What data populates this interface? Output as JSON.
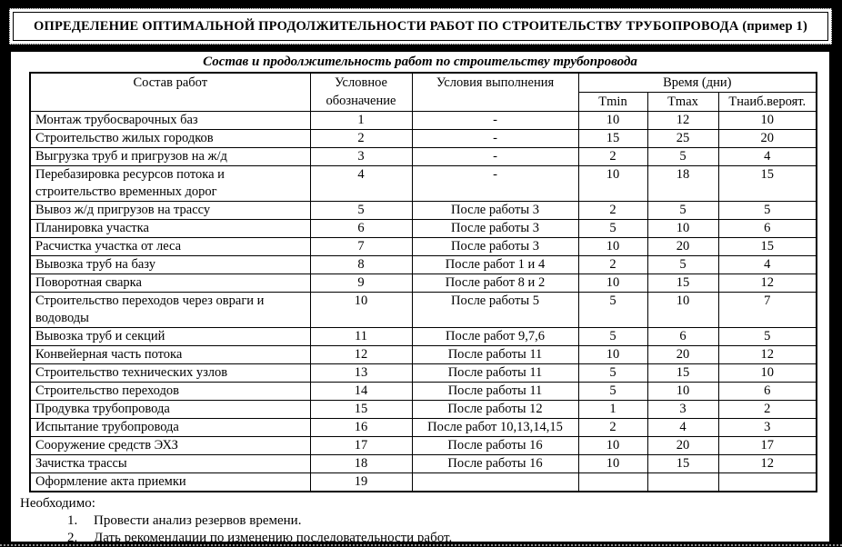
{
  "colors": {
    "page_background": "#000000",
    "content_background": "#ffffff",
    "text": "#000000",
    "border": "#000000"
  },
  "title_box": {
    "text": "ОПРЕДЕЛЕНИЕ ОПТИМАЛЬНОЙ ПРОДОЛЖИТЕЛЬНОСТИ РАБОТ ПО СТРОИТЕЛЬСТВУ ТРУБОПРОВОДА (пример 1)"
  },
  "table": {
    "caption": "Состав и продолжительность работ по строительству трубопровода",
    "headers": {
      "col_work": "Состав работ",
      "col_symbol": "Условное обозначение",
      "col_conditions": "Условия выполнения",
      "col_time_group": "Время (дни)",
      "col_tmin": "Tmin",
      "col_tmax": "Tmax",
      "col_tprob": "Тнаиб.вероят."
    },
    "rows": [
      {
        "work": "Монтаж трубосварочных баз",
        "symbol": "1",
        "conditions": "-",
        "tmin": "10",
        "tmax": "12",
        "tprob": "10"
      },
      {
        "work": "Строительство жилых городков",
        "symbol": "2",
        "conditions": "-",
        "tmin": "15",
        "tmax": "25",
        "tprob": "20"
      },
      {
        "work": "Выгрузка труб и пригрузов на ж/д",
        "symbol": "3",
        "conditions": "-",
        "tmin": "2",
        "tmax": "5",
        "tprob": "4"
      },
      {
        "work": "Перебазировка ресурсов потока и строительство временных дорог",
        "symbol": "4",
        "conditions": "-",
        "tmin": "10",
        "tmax": "18",
        "tprob": "15"
      },
      {
        "work": "Вывоз ж/д пригрузов на трассу",
        "symbol": "5",
        "conditions": "После работы 3",
        "tmin": "2",
        "tmax": "5",
        "tprob": "5"
      },
      {
        "work": "Планировка участка",
        "symbol": "6",
        "conditions": "После работы 3",
        "tmin": "5",
        "tmax": "10",
        "tprob": "6"
      },
      {
        "work": "Расчистка участка от леса",
        "symbol": "7",
        "conditions": "После работы 3",
        "tmin": "10",
        "tmax": "20",
        "tprob": "15"
      },
      {
        "work": "Вывозка труб на базу",
        "symbol": "8",
        "conditions": "После работ 1 и 4",
        "tmin": "2",
        "tmax": "5",
        "tprob": "4"
      },
      {
        "work": "Поворотная сварка",
        "symbol": "9",
        "conditions": "После работ 8 и 2",
        "tmin": "10",
        "tmax": "15",
        "tprob": "12"
      },
      {
        "work": "Строительство переходов через овраги и водоводы",
        "symbol": "10",
        "conditions": "После работы 5",
        "tmin": "5",
        "tmax": "10",
        "tprob": "7"
      },
      {
        "work": "Вывозка труб и секций",
        "symbol": "11",
        "conditions": "После работ 9,7,6",
        "tmin": "5",
        "tmax": "6",
        "tprob": "5"
      },
      {
        "work": "Конвейерная часть потока",
        "symbol": "12",
        "conditions": "После работы 11",
        "tmin": "10",
        "tmax": "20",
        "tprob": "12"
      },
      {
        "work": "Строительство технических узлов",
        "symbol": "13",
        "conditions": "После работы 11",
        "tmin": "5",
        "tmax": "15",
        "tprob": "10"
      },
      {
        "work": "Строительство переходов",
        "symbol": "14",
        "conditions": "После работы 11",
        "tmin": "5",
        "tmax": "10",
        "tprob": "6"
      },
      {
        "work": "Продувка трубопровода",
        "symbol": "15",
        "conditions": "После работы 12",
        "tmin": "1",
        "tmax": "3",
        "tprob": "2"
      },
      {
        "work": "Испытание трубопровода",
        "symbol": "16",
        "conditions": "После работ 10,13,14,15",
        "tmin": "2",
        "tmax": "4",
        "tprob": "3"
      },
      {
        "work": "Сооружение средств ЭХЗ",
        "symbol": "17",
        "conditions": "После работы 16",
        "tmin": "10",
        "tmax": "20",
        "tprob": "17"
      },
      {
        "work": "Зачистка трассы",
        "symbol": "18",
        "conditions": "После работы 16",
        "tmin": "10",
        "tmax": "15",
        "tprob": "12"
      },
      {
        "work": "Оформление акта приемки",
        "symbol": "19",
        "conditions": "",
        "tmin": "",
        "tmax": "",
        "tprob": ""
      }
    ]
  },
  "footer": {
    "heading": "Необходимо:",
    "items": [
      {
        "num": "1.",
        "text": "Провести анализ резервов времени."
      },
      {
        "num": "2.",
        "text": "Дать рекомендации по изменению последовательности работ."
      }
    ]
  }
}
